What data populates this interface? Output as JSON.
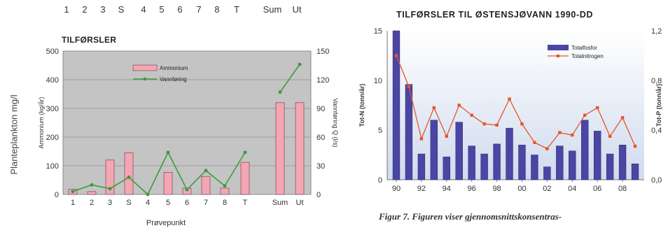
{
  "left_figure": {
    "side_label": "Planteplankton mg/l",
    "top_categories": [
      "1",
      "2",
      "3",
      "S",
      "4",
      "5",
      "6",
      "7",
      "8",
      "T",
      "Sum",
      "Ut"
    ]
  },
  "right_figure": {
    "caption": "Figur 7. Figuren viser gjennomsnittskonsentras-"
  },
  "colors": {
    "plot_bg_left": "#c4c4c4",
    "bar_left": "#f4a6b3",
    "line_left": "#3e9a3e",
    "bar_right": "#4b45a3",
    "line_right": "#e8542a",
    "plot_bg_right_top": "#ffffff",
    "plot_bg_right_bottom": "#cfdbee"
  },
  "chart_data": [
    {
      "type": "bar",
      "title": "TILFØRSLER",
      "xlabel": "Prøvepunkt",
      "ylabel": "Ammonium (kg/år)",
      "y2label": "Vannføring Q (l/s)",
      "categories": [
        "1",
        "2",
        "3",
        "S",
        "4",
        "5",
        "6",
        "7",
        "8",
        "T",
        "Sum",
        "Ut"
      ],
      "ylim": [
        0,
        500
      ],
      "y2lim": [
        0,
        150
      ],
      "yticks": [
        0,
        100,
        200,
        300,
        400,
        500
      ],
      "y2ticks": [
        0,
        30,
        60,
        90,
        120,
        150
      ],
      "grid": true,
      "legend_position": "top-center",
      "series": [
        {
          "name": "Ammonium",
          "type": "bar",
          "axis": "left",
          "values": [
            18,
            10,
            120,
            145,
            0,
            77,
            22,
            63,
            22,
            112,
            320,
            320
          ]
        },
        {
          "name": "Vannføring",
          "type": "line",
          "axis": "right",
          "values": [
            3,
            10,
            6,
            18,
            0,
            44,
            5,
            25,
            9,
            44,
            107,
            136
          ]
        }
      ]
    },
    {
      "type": "bar",
      "title": "TILFØRSLER TIL ØSTENSJØVANN 1990-DD",
      "ylabel": "Tot-N (tonn/år)",
      "y2label": "Tot-P (tonn/år)",
      "x": [
        1990,
        1991,
        1992,
        1993,
        1994,
        1995,
        1996,
        1997,
        1998,
        1999,
        2000,
        2001,
        2002,
        2003,
        2004,
        2005,
        2006,
        2007,
        2008,
        2009
      ],
      "xticklabels": [
        "90",
        "92",
        "94",
        "96",
        "98",
        "00",
        "02",
        "04",
        "06",
        "08"
      ],
      "ylim": [
        0,
        15
      ],
      "y2lim": [
        0,
        1.2
      ],
      "yticks": [
        "0",
        "5",
        "10",
        "15"
      ],
      "y2ticks": [
        "0,0",
        "0,4",
        "0,8",
        "1,2"
      ],
      "grid": false,
      "legend_position": "top-right",
      "series": [
        {
          "name": "Totalfosfor",
          "type": "bar",
          "axis": "left",
          "values": [
            15.0,
            9.6,
            2.6,
            6.0,
            2.3,
            5.8,
            3.4,
            2.6,
            3.6,
            5.2,
            3.5,
            2.5,
            1.3,
            3.4,
            2.9,
            6.0,
            4.9,
            2.6,
            3.5,
            1.6
          ]
        },
        {
          "name": "Totalnitrogen",
          "type": "line",
          "axis": "right",
          "values": [
            1.0,
            0.75,
            0.33,
            0.58,
            0.35,
            0.6,
            0.52,
            0.45,
            0.44,
            0.65,
            0.45,
            0.3,
            0.25,
            0.38,
            0.36,
            0.52,
            0.58,
            0.35,
            0.5,
            0.27
          ]
        }
      ]
    }
  ]
}
